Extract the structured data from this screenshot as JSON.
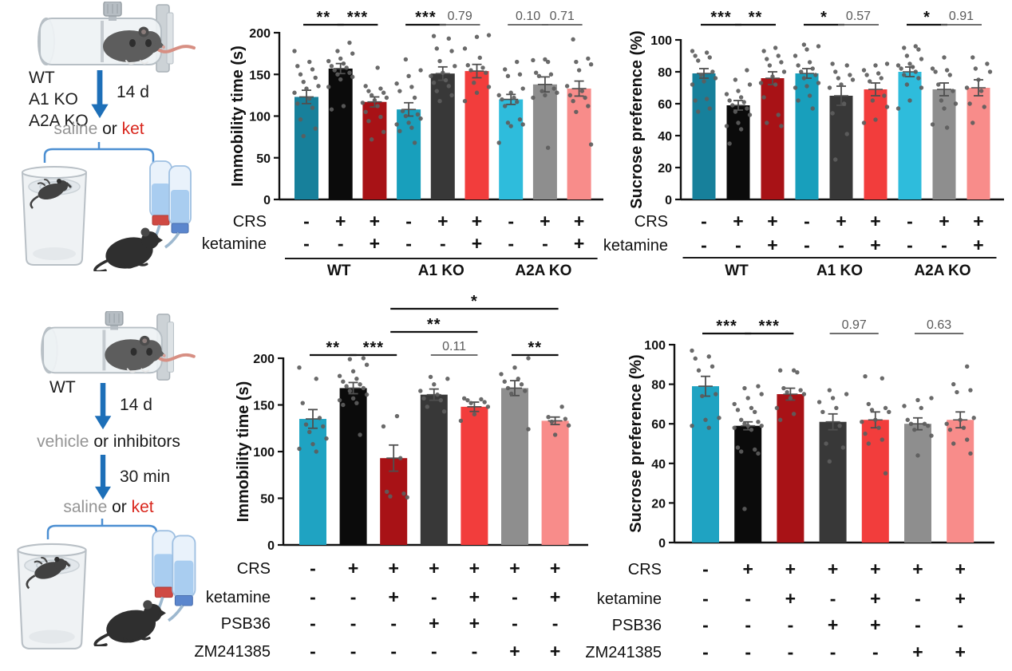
{
  "left_panels": {
    "top": {
      "genotype_lines": [
        "WT",
        "A1 KO",
        "A2A KO"
      ],
      "stress_duration": "14 d",
      "injection_parts": [
        {
          "text": "saline ",
          "color": "#949494"
        },
        {
          "text": "or ",
          "color": "#1a1a1a"
        },
        {
          "text": "ket",
          "color": "#d9261c"
        }
      ]
    },
    "bottom": {
      "genotype_lines": [
        "WT"
      ],
      "stress_duration": "14 d",
      "pretreatment_parts": [
        {
          "text": "vehicle ",
          "color": "#949494"
        },
        {
          "text": "or inhibitors",
          "color": "#1a1a1a"
        }
      ],
      "pretreatment_delay": "30 min",
      "injection_parts": [
        {
          "text": "saline ",
          "color": "#949494"
        },
        {
          "text": "or ",
          "color": "#1a1a1a"
        },
        {
          "text": "ket",
          "color": "#d9261c"
        }
      ]
    }
  },
  "chart_data": [
    {
      "id": "immobility_genotypes",
      "type": "bar",
      "title": "",
      "ylabel": "Immobility time (s)",
      "ylim": [
        0,
        200
      ],
      "yticks": [
        0,
        50,
        100,
        150,
        200
      ],
      "grid": false,
      "bars": [
        {
          "value": 123,
          "sem": 8,
          "color": "#17809b",
          "points": [
            178,
            165,
            160,
            156,
            150,
            146,
            141,
            136,
            133,
            128,
            121,
            115,
            110,
            96,
            85,
            76
          ]
        },
        {
          "value": 157,
          "sem": 6,
          "color": "#0b0b0b",
          "points": [
            188,
            178,
            175,
            169,
            166,
            163,
            160,
            158,
            155,
            152,
            150,
            147,
            144,
            135,
            112,
            108
          ]
        },
        {
          "value": 117,
          "sem": 6,
          "color": "#a81216",
          "points": [
            158,
            136,
            133,
            130,
            128,
            125,
            122,
            119,
            116,
            112,
            105,
            99,
            94,
            81,
            72
          ]
        },
        {
          "value": 108,
          "sem": 8,
          "color": "#189fbc",
          "points": [
            168,
            155,
            148,
            139,
            135,
            130,
            122,
            106,
            102,
            100,
            97,
            92,
            90,
            86,
            82,
            68
          ]
        },
        {
          "value": 151,
          "sem": 8,
          "color": "#383838",
          "points": [
            196,
            193,
            181,
            178,
            166,
            160,
            152,
            148,
            143,
            140,
            136,
            130,
            125,
            118
          ]
        },
        {
          "value": 154,
          "sem": 8,
          "color": "#f23d3c",
          "points": [
            197,
            195,
            181,
            170,
            161,
            158,
            155,
            152,
            140,
            135,
            128,
            118
          ]
        },
        {
          "value": 120,
          "sem": 6,
          "color": "#2ebcdc",
          "points": [
            165,
            156,
            150,
            148,
            133,
            128,
            125,
            122,
            120,
            117,
            112,
            96,
            92,
            90,
            88,
            68
          ]
        },
        {
          "value": 138,
          "sem": 9,
          "color": "#8e8e8e",
          "points": [
            168,
            167,
            165,
            152,
            150,
            148,
            133,
            130,
            128,
            125,
            122,
            62
          ]
        },
        {
          "value": 133,
          "sem": 9,
          "color": "#f88c8a",
          "points": [
            192,
            169,
            165,
            162,
            155,
            136,
            130,
            125,
            122,
            118,
            112,
            105,
            66
          ]
        }
      ],
      "rows": [
        {
          "label": "CRS",
          "marks": [
            "-",
            "+",
            "+",
            "-",
            "+",
            "+",
            "-",
            "+",
            "+"
          ]
        },
        {
          "label": "ketamine",
          "marks": [
            "-",
            "-",
            "+",
            "-",
            "-",
            "+",
            "-",
            "-",
            "+"
          ]
        }
      ],
      "groups": [
        {
          "label": "WT",
          "from": 0,
          "to": 2
        },
        {
          "label": "A1 KO",
          "from": 3,
          "to": 5
        },
        {
          "label": "A2A KO",
          "from": 6,
          "to": 8
        }
      ],
      "sig": [
        {
          "from": 0,
          "to": 1,
          "label": "**",
          "level": 0
        },
        {
          "from": 1,
          "to": 2,
          "label": "***",
          "level": 0
        },
        {
          "from": 3,
          "to": 4,
          "label": "***",
          "level": 0
        },
        {
          "from": 4,
          "to": 5,
          "label": "0.79",
          "level": 0
        },
        {
          "from": 6,
          "to": 7,
          "label": "0.10",
          "level": 0
        },
        {
          "from": 7,
          "to": 8,
          "label": "0.71",
          "level": 0
        }
      ]
    },
    {
      "id": "sucrose_genotypes",
      "type": "bar",
      "title": "",
      "ylabel": "Sucrose preference (%)",
      "ylim": [
        0,
        100
      ],
      "yticks": [
        0,
        20,
        40,
        60,
        80,
        100
      ],
      "grid": false,
      "bars": [
        {
          "value": 79,
          "sem": 3,
          "color": "#17809b",
          "points": [
            93,
            92,
            90,
            89,
            87,
            80,
            78,
            76,
            74,
            72,
            63,
            62,
            57,
            55
          ]
        },
        {
          "value": 59,
          "sem": 3,
          "color": "#0b0b0b",
          "points": [
            81,
            75,
            72,
            68,
            66,
            64,
            62,
            61,
            59,
            57,
            55,
            53,
            48,
            46,
            44,
            35
          ]
        },
        {
          "value": 76,
          "sem": 4,
          "color": "#a81216",
          "points": [
            95,
            93,
            90,
            88,
            86,
            84,
            80,
            77,
            73,
            72,
            64,
            53,
            48,
            46
          ]
        },
        {
          "value": 79,
          "sem": 3,
          "color": "#189fbc",
          "points": [
            97,
            96,
            94,
            90,
            86,
            84,
            82,
            80,
            78,
            76,
            73,
            71,
            70,
            65,
            62,
            57
          ]
        },
        {
          "value": 65,
          "sem": 6,
          "color": "#383838",
          "points": [
            85,
            84,
            80,
            78,
            76,
            75,
            72,
            70,
            60,
            54,
            41,
            25
          ]
        },
        {
          "value": 69,
          "sem": 4,
          "color": "#f23d3c",
          "points": [
            85,
            84,
            81,
            79,
            78,
            76,
            74,
            65,
            62,
            58,
            50,
            48
          ]
        },
        {
          "value": 80,
          "sem": 3,
          "color": "#2ebcdc",
          "points": [
            96,
            95,
            94,
            90,
            88,
            85,
            84,
            83,
            82,
            80,
            78,
            76,
            72,
            70,
            62,
            57
          ]
        },
        {
          "value": 69,
          "sem": 4,
          "color": "#8e8e8e",
          "points": [
            89,
            82,
            81,
            80,
            78,
            72,
            68,
            62,
            60,
            57,
            47,
            45
          ]
        },
        {
          "value": 70,
          "sem": 5,
          "color": "#f88c8a",
          "points": [
            89,
            85,
            82,
            80,
            75,
            70,
            68,
            60,
            58,
            48
          ]
        }
      ],
      "rows": [
        {
          "label": "CRS",
          "marks": [
            "-",
            "+",
            "+",
            "-",
            "+",
            "+",
            "-",
            "+",
            "+"
          ]
        },
        {
          "label": "ketamine",
          "marks": [
            "-",
            "-",
            "+",
            "-",
            "-",
            "+",
            "-",
            "-",
            "+"
          ]
        }
      ],
      "groups": [
        {
          "label": "WT",
          "from": 0,
          "to": 2
        },
        {
          "label": "A1 KO",
          "from": 3,
          "to": 5
        },
        {
          "label": "A2A KO",
          "from": 6,
          "to": 8
        }
      ],
      "sig": [
        {
          "from": 0,
          "to": 1,
          "label": "***",
          "level": 0
        },
        {
          "from": 1,
          "to": 2,
          "label": "**",
          "level": 0
        },
        {
          "from": 3,
          "to": 4,
          "label": "*",
          "level": 0
        },
        {
          "from": 4,
          "to": 5,
          "label": "0.57",
          "level": 0
        },
        {
          "from": 6,
          "to": 7,
          "label": "*",
          "level": 0
        },
        {
          "from": 7,
          "to": 8,
          "label": "0.91",
          "level": 0
        }
      ]
    },
    {
      "id": "immobility_inhibitors",
      "type": "bar",
      "title": "",
      "ylabel": "Immobility time (s)",
      "ylim": [
        0,
        200
      ],
      "yticks": [
        0,
        50,
        100,
        150,
        200
      ],
      "grid": false,
      "bars": [
        {
          "value": 135,
          "sem": 10,
          "color": "#1fa3c2",
          "points": [
            190,
            178,
            152,
            136,
            129,
            127,
            121,
            114,
            108,
            103,
            100
          ]
        },
        {
          "value": 168,
          "sem": 6,
          "color": "#0b0b0b",
          "points": [
            200,
            199,
            193,
            186,
            181,
            178,
            175,
            172,
            170,
            168,
            165,
            161,
            157,
            155,
            152,
            150,
            118
          ]
        },
        {
          "value": 93,
          "sem": 14,
          "color": "#a81216",
          "points": [
            138,
            127,
            93,
            57,
            55,
            52,
            51
          ]
        },
        {
          "value": 161,
          "sem": 6,
          "color": "#383838",
          "points": [
            180,
            178,
            172,
            165,
            161,
            157,
            155,
            148,
            143
          ]
        },
        {
          "value": 148,
          "sem": 5,
          "color": "#f23d3c",
          "points": [
            157,
            156,
            155,
            153,
            152,
            148,
            140,
            133
          ]
        },
        {
          "value": 168,
          "sem": 8,
          "color": "#8e8e8e",
          "points": [
            200,
            190,
            183,
            178,
            175,
            172,
            168,
            165,
            162,
            124
          ]
        },
        {
          "value": 133,
          "sem": 4,
          "color": "#f88c8a",
          "points": [
            148,
            137,
            135,
            132,
            128,
            118
          ]
        }
      ],
      "rows": [
        {
          "label": "CRS",
          "marks": [
            "-",
            "+",
            "+",
            "+",
            "+",
            "+",
            "+"
          ]
        },
        {
          "label": "ketamine",
          "marks": [
            "-",
            "-",
            "+",
            "-",
            "+",
            "-",
            "+"
          ]
        },
        {
          "label": "PSB36",
          "marks": [
            "-",
            "-",
            "-",
            "+",
            "+",
            "-",
            "-"
          ]
        },
        {
          "label": "ZM241385",
          "marks": [
            "-",
            "-",
            "-",
            "-",
            "-",
            "+",
            "+"
          ]
        }
      ],
      "groups": [],
      "sig": [
        {
          "from": 0,
          "to": 1,
          "label": "**",
          "level": 0
        },
        {
          "from": 1,
          "to": 2,
          "label": "***",
          "level": 0
        },
        {
          "from": 3,
          "to": 4,
          "label": "0.11",
          "level": 0
        },
        {
          "from": 5,
          "to": 6,
          "label": "**",
          "level": 0
        },
        {
          "from": 2,
          "to": 4,
          "label": "**",
          "level": 1
        },
        {
          "from": 2,
          "to": 6,
          "label": "*",
          "level": 2
        }
      ]
    },
    {
      "id": "sucrose_inhibitors",
      "type": "bar",
      "title": "",
      "ylabel": "Sucrose preference (%)",
      "ylim": [
        0,
        100
      ],
      "yticks": [
        0,
        20,
        40,
        60,
        80,
        100
      ],
      "grid": false,
      "bars": [
        {
          "value": 79,
          "sem": 5,
          "color": "#1fa3c2",
          "points": [
            97,
            94,
            93,
            89,
            87,
            75,
            74,
            63,
            62,
            59,
            58
          ]
        },
        {
          "value": 59,
          "sem": 2,
          "color": "#0b0b0b",
          "points": [
            79,
            78,
            75,
            73,
            70,
            68,
            67,
            66,
            62,
            61,
            60,
            59,
            59,
            58,
            57,
            48,
            47,
            46,
            45,
            17
          ]
        },
        {
          "value": 75,
          "sem": 3,
          "color": "#a81216",
          "points": [
            87,
            87,
            86,
            78,
            77,
            76,
            75,
            73,
            68,
            65,
            62
          ]
        },
        {
          "value": 61,
          "sem": 4,
          "color": "#383838",
          "points": [
            77,
            75,
            73,
            71,
            68,
            66,
            59,
            50,
            48,
            41
          ]
        },
        {
          "value": 62,
          "sem": 4,
          "color": "#f23d3c",
          "points": [
            84,
            83,
            70,
            68,
            67,
            66,
            62,
            61,
            58,
            55,
            52,
            50,
            35
          ]
        },
        {
          "value": 60,
          "sem": 3,
          "color": "#8e8e8e",
          "points": [
            73,
            72,
            69,
            68,
            62,
            60,
            60,
            59,
            57,
            54,
            44
          ]
        },
        {
          "value": 62,
          "sem": 4,
          "color": "#f88c8a",
          "points": [
            89,
            80,
            77,
            76,
            63,
            62,
            60,
            58,
            57,
            52,
            50,
            45
          ]
        }
      ],
      "rows": [
        {
          "label": "CRS",
          "marks": [
            "-",
            "+",
            "+",
            "+",
            "+",
            "+",
            "+"
          ]
        },
        {
          "label": "ketamine",
          "marks": [
            "-",
            "-",
            "+",
            "-",
            "+",
            "-",
            "+"
          ]
        },
        {
          "label": "PSB36",
          "marks": [
            "-",
            "-",
            "-",
            "+",
            "+",
            "-",
            "-"
          ]
        },
        {
          "label": "ZM241385",
          "marks": [
            "-",
            "-",
            "-",
            "-",
            "-",
            "+",
            "+"
          ]
        }
      ],
      "groups": [],
      "sig": [
        {
          "from": 0,
          "to": 1,
          "label": "***",
          "level": 0
        },
        {
          "from": 1,
          "to": 2,
          "label": "***",
          "level": 0
        },
        {
          "from": 3,
          "to": 4,
          "label": "0.97",
          "level": 0
        },
        {
          "from": 5,
          "to": 6,
          "label": "0.63",
          "level": 0
        }
      ]
    }
  ]
}
